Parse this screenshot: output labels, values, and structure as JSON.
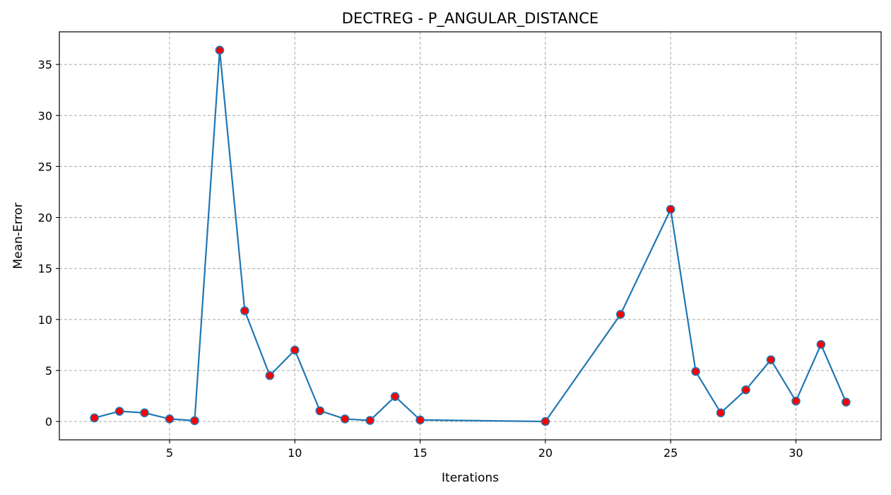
{
  "chart_data": {
    "type": "line",
    "title": "DECTREG - P_ANGULAR_DISTANCE",
    "xlabel": "Iterations",
    "ylabel": "Mean-Error",
    "xlim": [
      0.6,
      33.4
    ],
    "ylim": [
      -1.8,
      38.2
    ],
    "xticks": [
      5,
      10,
      15,
      20,
      25,
      30
    ],
    "yticks": [
      0,
      5,
      10,
      15,
      20,
      25,
      30,
      35
    ],
    "grid": true,
    "line_color": "#1f77b4",
    "marker_face_color": "#ff0000",
    "marker_edge_color": "#1f77b4",
    "grid_color": "#b0b0b0",
    "series": [
      {
        "x": [
          2,
          3,
          4,
          5,
          6,
          7,
          8,
          9,
          10,
          11,
          12,
          13,
          14,
          15,
          20,
          23,
          25,
          26,
          27,
          28,
          29,
          30,
          31,
          32
        ],
        "y": [
          0.35,
          1.0,
          0.85,
          0.25,
          0.08,
          36.4,
          10.85,
          4.5,
          7.0,
          1.05,
          0.25,
          0.1,
          2.45,
          0.15,
          0.0,
          10.5,
          20.8,
          4.9,
          0.85,
          3.1,
          6.05,
          2.0,
          7.55,
          1.9
        ]
      }
    ]
  }
}
